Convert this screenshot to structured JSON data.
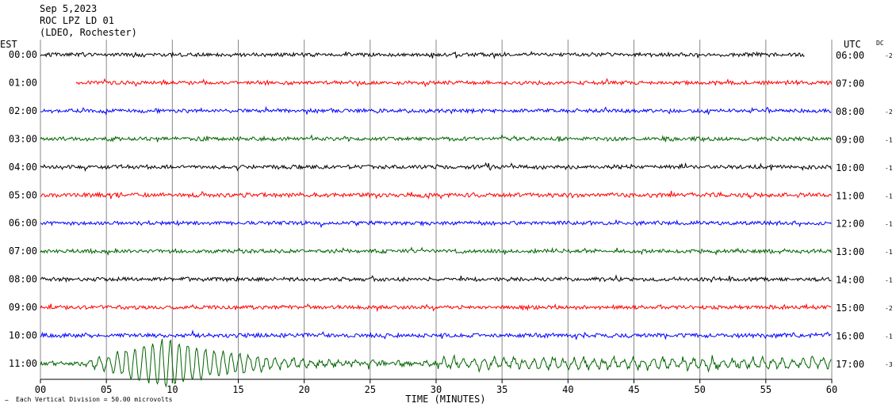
{
  "header": {
    "date": "Sep 5,2023",
    "station": "ROC LPZ LD 01",
    "network": "(LDEO, Rochester)"
  },
  "labels": {
    "left_tz": "EST",
    "right_tz": "UTC",
    "dc": "DC",
    "xlabel": "TIME (MINUTES)",
    "footnote": "Each Vertical Division =   50.00 microvolts"
  },
  "chart_data": {
    "type": "line",
    "title": "",
    "xlabel": "TIME (MINUTES)",
    "ylabel": "",
    "xlim": [
      0,
      60
    ],
    "xticks": [
      "00",
      "05",
      "10",
      "15",
      "20",
      "25",
      "30",
      "35",
      "40",
      "45",
      "50",
      "55",
      "60"
    ],
    "grid": true,
    "trace_colors": [
      "#000000",
      "#ff0000",
      "#0000ff",
      "#006400"
    ],
    "rows": [
      {
        "est": "00:00",
        "utc": "06:00",
        "dc": "-2",
        "color": "#000000",
        "start_min": 0.0,
        "end_min": 58.0,
        "amp": 1.0
      },
      {
        "est": "01:00",
        "utc": "07:00",
        "dc": "",
        "color": "#ff0000",
        "start_min": 2.7,
        "end_min": 60.0,
        "amp": 1.0
      },
      {
        "est": "02:00",
        "utc": "08:00",
        "dc": "-2",
        "color": "#0000ff",
        "start_min": 0.0,
        "end_min": 60.0,
        "amp": 1.0
      },
      {
        "est": "03:00",
        "utc": "09:00",
        "dc": "-1",
        "color": "#006400",
        "start_min": 0.0,
        "end_min": 60.0,
        "amp": 1.0
      },
      {
        "est": "04:00",
        "utc": "10:00",
        "dc": "-1",
        "color": "#000000",
        "start_min": 0.0,
        "end_min": 60.0,
        "amp": 1.0
      },
      {
        "est": "05:00",
        "utc": "11:00",
        "dc": "-1",
        "color": "#ff0000",
        "start_min": 0.0,
        "end_min": 60.0,
        "amp": 1.1
      },
      {
        "est": "06:00",
        "utc": "12:00",
        "dc": "-1",
        "color": "#0000ff",
        "start_min": 0.0,
        "end_min": 60.0,
        "amp": 1.0
      },
      {
        "est": "07:00",
        "utc": "13:00",
        "dc": "-1",
        "color": "#006400",
        "start_min": 0.0,
        "end_min": 60.0,
        "amp": 1.0
      },
      {
        "est": "08:00",
        "utc": "14:00",
        "dc": "-1",
        "color": "#000000",
        "start_min": 0.0,
        "end_min": 60.0,
        "amp": 1.0
      },
      {
        "est": "09:00",
        "utc": "15:00",
        "dc": "-2",
        "color": "#ff0000",
        "start_min": 0.0,
        "end_min": 60.0,
        "amp": 1.0
      },
      {
        "est": "10:00",
        "utc": "16:00",
        "dc": "-1",
        "color": "#0000ff",
        "start_min": 0.0,
        "end_min": 60.0,
        "amp": 1.1
      },
      {
        "est": "11:00",
        "utc": "17:00",
        "dc": "-3",
        "color": "#006400",
        "start_min": 0.0,
        "end_min": 60.0,
        "amp": 1.3
      }
    ],
    "event": {
      "row": 11,
      "onset_min": 3.0,
      "peak_min": 9.5,
      "end_min": 30.0,
      "peak_amplitude_divisions": 7.0
    }
  }
}
